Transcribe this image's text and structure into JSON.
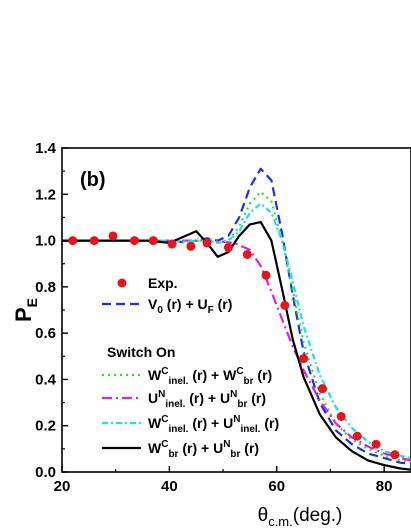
{
  "chart_data": {
    "type": "line",
    "panel_label": "(b)",
    "ylabel": {
      "main": "P",
      "sub": "E"
    },
    "xlabel": {
      "main": "θ",
      "sub": "c.m.",
      "tail": "(deg.)"
    },
    "xlim": [
      20,
      85
    ],
    "ylim": [
      0.0,
      1.4
    ],
    "xticks": [
      20,
      40,
      60,
      80
    ],
    "yticks": [
      0.0,
      0.2,
      0.4,
      0.6,
      0.8,
      1.0,
      1.2,
      1.4
    ],
    "ytick_labels": [
      "0.0",
      "0.2",
      "0.4",
      "0.6",
      "0.8",
      "1.0",
      "1.2",
      "1.4"
    ],
    "legend_header": "Switch On",
    "series": [
      {
        "id": "exp",
        "name": "Exp.",
        "legend_parts": [
          [
            "Exp.",
            ""
          ]
        ],
        "kind": "scatter",
        "color": "#e8141c",
        "x": [
          22,
          26,
          29.5,
          33.5,
          37,
          40.5,
          44,
          47,
          51,
          54.5,
          58,
          61.5,
          65,
          68.5,
          72,
          75,
          78.5,
          82
        ],
        "y": [
          1.0,
          1.0,
          1.02,
          1.0,
          1.0,
          0.985,
          0.975,
          0.99,
          0.97,
          0.94,
          0.85,
          0.72,
          0.49,
          0.36,
          0.24,
          0.155,
          0.12,
          0.075
        ]
      },
      {
        "id": "v0uf",
        "name": "V0 (r) + UF (r)",
        "legend_parts": [
          [
            "V",
            ""
          ],
          [
            "0",
            "sub"
          ],
          [
            " (r) + U",
            ""
          ],
          [
            "F",
            "sub"
          ],
          [
            " (r)",
            ""
          ]
        ],
        "kind": "line",
        "color": "#1f2fe0",
        "dash": "9,5",
        "x": [
          20,
          30,
          38,
          41,
          43,
          45,
          47,
          49,
          51,
          53,
          55,
          57,
          59,
          61,
          63,
          65,
          68,
          71,
          74,
          77,
          80,
          83,
          85
        ],
        "y": [
          1.0,
          1.0,
          1.0,
          1.0,
          0.99,
          1.0,
          1.01,
          1.0,
          1.02,
          1.1,
          1.23,
          1.31,
          1.26,
          1.03,
          0.76,
          0.52,
          0.3,
          0.18,
          0.12,
          0.08,
          0.06,
          0.04,
          0.035
        ]
      },
      {
        "id": "wc_wc",
        "name": "WCinel. (r) + WCbr (r)",
        "legend_parts": [
          [
            "W",
            ""
          ],
          [
            "C",
            "sup"
          ],
          [
            "inel.",
            "sub"
          ],
          [
            " (r) + W",
            ""
          ],
          [
            "C",
            "sup"
          ],
          [
            "br",
            "sub"
          ],
          [
            " (r)",
            ""
          ]
        ],
        "kind": "line",
        "color": "#2ee02e",
        "dash": "2,4",
        "x": [
          20,
          30,
          38,
          41,
          43,
          45,
          47,
          49,
          51,
          53,
          55,
          57,
          59,
          61,
          63,
          65,
          68,
          71,
          74,
          77,
          80,
          83,
          85
        ],
        "y": [
          1.0,
          1.0,
          1.0,
          1.0,
          0.99,
          1.0,
          1.0,
          0.99,
          1.0,
          1.06,
          1.16,
          1.21,
          1.17,
          1.0,
          0.78,
          0.56,
          0.34,
          0.21,
          0.14,
          0.1,
          0.07,
          0.05,
          0.045
        ]
      },
      {
        "id": "un_un",
        "name": "UNinel. (r) + UNbr (r)",
        "legend_parts": [
          [
            "U",
            ""
          ],
          [
            "N",
            "sup"
          ],
          [
            "inel.",
            "sub"
          ],
          [
            " (r) + U",
            ""
          ],
          [
            "N",
            "sup"
          ],
          [
            "br",
            "sub"
          ],
          [
            " (r)",
            ""
          ]
        ],
        "kind": "line",
        "color": "#e01fe0",
        "dash": "10,4,2,4",
        "x": [
          20,
          30,
          38,
          44,
          48,
          52,
          55,
          57,
          59,
          61,
          63,
          65,
          68,
          71,
          74,
          77,
          80,
          83,
          85
        ],
        "y": [
          1.0,
          1.0,
          1.0,
          1.0,
          1.0,
          0.99,
          0.96,
          0.89,
          0.78,
          0.66,
          0.54,
          0.44,
          0.31,
          0.21,
          0.15,
          0.11,
          0.08,
          0.06,
          0.05
        ]
      },
      {
        "id": "wc_un",
        "name": "WCinel. (r) + UNinel. (r)",
        "legend_parts": [
          [
            "W",
            ""
          ],
          [
            "C",
            "sup"
          ],
          [
            "inel.",
            "sub"
          ],
          [
            " (r) + U",
            ""
          ],
          [
            "N",
            "sup"
          ],
          [
            "inel.",
            "sub"
          ],
          [
            " (r)",
            ""
          ]
        ],
        "kind": "line",
        "color": "#1fe0e0",
        "dash": "6,3,2,3",
        "x": [
          20,
          30,
          38,
          41,
          43,
          45,
          47,
          49,
          51,
          53,
          55,
          57,
          59,
          61,
          63,
          65,
          68,
          71,
          74,
          77,
          80,
          83,
          85
        ],
        "y": [
          1.0,
          1.0,
          1.0,
          1.0,
          0.995,
          1.0,
          1.0,
          0.99,
          1.0,
          1.04,
          1.12,
          1.16,
          1.12,
          1.0,
          0.82,
          0.63,
          0.42,
          0.28,
          0.19,
          0.13,
          0.09,
          0.07,
          0.06
        ]
      },
      {
        "id": "wc_un_br",
        "name": "WCbr (r) + UNbr (r)",
        "legend_parts": [
          [
            "W",
            ""
          ],
          [
            "C",
            "sup"
          ],
          [
            "br",
            "sub"
          ],
          [
            " (r) + U",
            ""
          ],
          [
            "N",
            "sup"
          ],
          [
            "br",
            "sub"
          ],
          [
            " (r)",
            ""
          ]
        ],
        "kind": "line",
        "color": "#000000",
        "dash": "",
        "x": [
          20,
          30,
          36,
          40,
          43,
          45,
          47,
          49,
          51,
          53,
          55,
          57,
          59,
          61,
          63,
          65,
          68,
          71,
          74,
          77,
          80,
          83,
          85
        ],
        "y": [
          1.0,
          1.0,
          1.0,
          0.99,
          1.02,
          1.04,
          0.99,
          0.93,
          0.95,
          1.02,
          1.07,
          1.08,
          1.0,
          0.79,
          0.57,
          0.41,
          0.25,
          0.15,
          0.09,
          0.05,
          0.03,
          0.015,
          0.01
        ]
      }
    ]
  }
}
